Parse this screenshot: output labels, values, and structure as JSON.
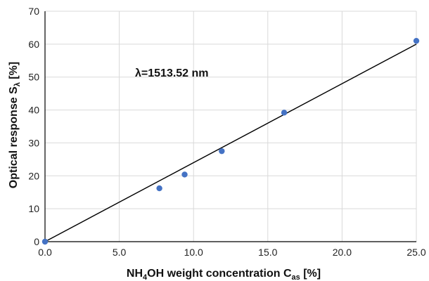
{
  "chart_data": {
    "type": "scatter",
    "xlabel": {
      "main": "NH",
      "sub1": "4",
      "main2": "OH weight concentration C",
      "sub2": "as",
      "tail": " [%]"
    },
    "ylabel": {
      "main": "Optical response S",
      "sub": "λ",
      "tail": " [%]"
    },
    "annotation": "λ=1513.52 nm",
    "xlim": [
      0,
      25
    ],
    "ylim": [
      0,
      70
    ],
    "xticks": [
      "0.0",
      "5.0",
      "10.0",
      "15.0",
      "20.0",
      "25.0"
    ],
    "yticks": [
      "0",
      "10",
      "20",
      "30",
      "40",
      "50",
      "60",
      "70"
    ],
    "grid": true,
    "series": [
      {
        "points": [
          {
            "x": 0.0,
            "y": 0.0
          },
          {
            "x": 7.7,
            "y": 16.2
          },
          {
            "x": 9.4,
            "y": 20.4
          },
          {
            "x": 11.9,
            "y": 27.5
          },
          {
            "x": 16.1,
            "y": 39.2
          },
          {
            "x": 25.0,
            "y": 61.0
          }
        ],
        "marker_color": "#4472C4"
      }
    ],
    "fit_line": {
      "x": [
        0,
        25
      ],
      "y": [
        0,
        60
      ],
      "color": "#000000"
    }
  },
  "colors": {
    "grid": "#d9d9d9",
    "axis": "#000000",
    "marker": "#4472C4"
  }
}
